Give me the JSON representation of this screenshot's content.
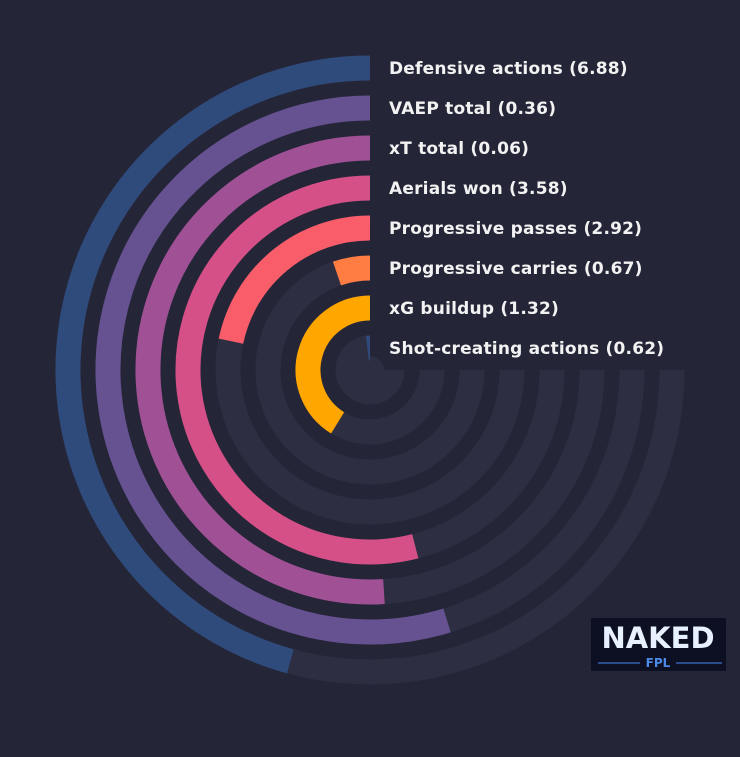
{
  "chart_data": {
    "type": "radial-bar",
    "items": [
      {
        "label": "Defensive actions (6.88)",
        "fraction": 0.61,
        "color": "#2f4b7c"
      },
      {
        "label": "VAEP total (0.36)",
        "fraction": 0.73,
        "color": "#665191"
      },
      {
        "label": "xT total (0.06)",
        "fraction": 0.68,
        "color": "#a05195"
      },
      {
        "label": "Aerials won (3.58)",
        "fraction": 0.72,
        "color": "#d45087"
      },
      {
        "label": "Progressive passes (2.92)",
        "fraction": 0.29,
        "color": "#f95d6a"
      },
      {
        "label": "Progressive carries (0.67)",
        "fraction": 0.07,
        "color": "#ff7c43"
      },
      {
        "label": "xG buildup (1.32)",
        "fraction": 0.55,
        "color": "#ffa600"
      },
      {
        "label": "Shot-creating actions (0.62)",
        "fraction": 0.025,
        "color": "#2f4b7c"
      }
    ],
    "track_color": "#2e2e42",
    "max_sweep_degrees": 270,
    "grid": false
  },
  "logo": {
    "title": "NAKED",
    "subtitle": "FPL"
  }
}
